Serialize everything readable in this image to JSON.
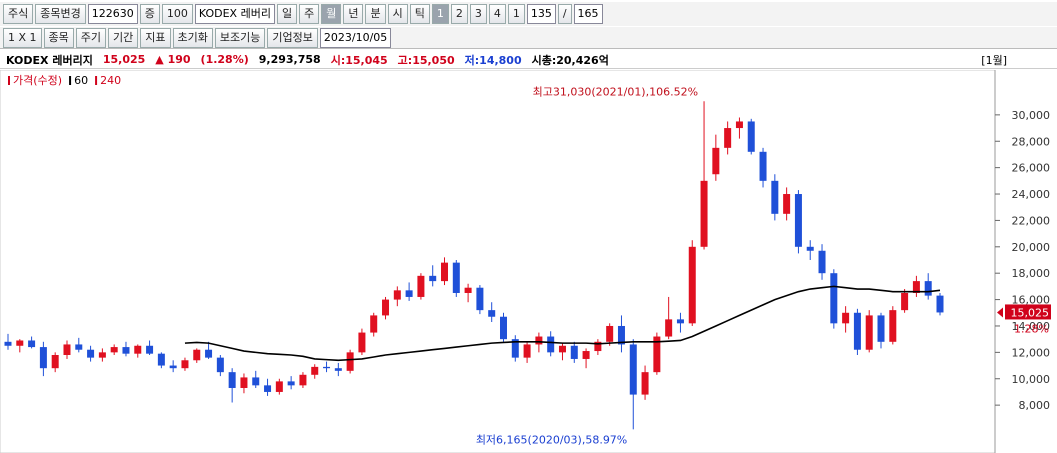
{
  "toolbar": {
    "row1": [
      "주식",
      "종목변경",
      "122630",
      "증",
      "100",
      "KODEX 레버리",
      "일",
      "주",
      "월",
      "년",
      "분",
      "시",
      "틱",
      "1",
      "2",
      "3",
      "4",
      "1",
      "135",
      "/",
      "165"
    ],
    "row2": [
      "1 X 1",
      "종목",
      "주기",
      "기간",
      "지표",
      "초기화",
      "보조기능",
      "기업정보",
      "2023/10/05"
    ]
  },
  "info": {
    "name": "KODEX 레버리지",
    "price": "15,025",
    "change": "▲ 190",
    "rate": "(1.28%)",
    "volume": "9,293,758",
    "open": "시:15,045",
    "high": "고:15,050",
    "low": "저:14,800",
    "cap": "시총:20,426억",
    "period": "[1월]"
  },
  "chart_data": {
    "type": "candlestick",
    "legend": [
      {
        "name": "가격(수정)",
        "color": "#d0021b"
      },
      {
        "name": "60",
        "color": "#000000"
      },
      {
        "name": "240",
        "color": "#d0021b"
      }
    ],
    "up_color": "#e01020",
    "down_color": "#1f50d8",
    "ylim": [
      4600,
      33400
    ],
    "yticks": [
      {
        "value": 8000,
        "label": "8,000"
      },
      {
        "value": 10000,
        "label": "10,000"
      },
      {
        "value": 12000,
        "label": "12,000"
      },
      {
        "value": 14000,
        "label": "14,000"
      },
      {
        "value": 16000,
        "label": "16,000"
      },
      {
        "value": 18000,
        "label": "18,000"
      },
      {
        "value": 20000,
        "label": "20,000"
      },
      {
        "value": 22000,
        "label": "22,000"
      },
      {
        "value": 24000,
        "label": "24,000"
      },
      {
        "value": 26000,
        "label": "26,000"
      },
      {
        "value": 28000,
        "label": "28,000"
      },
      {
        "value": 30000,
        "label": "30,000"
      }
    ],
    "ohlc": [
      [
        12800,
        13400,
        12200,
        12500
      ],
      [
        12500,
        13000,
        12000,
        12900
      ],
      [
        12900,
        13200,
        12300,
        12400
      ],
      [
        12400,
        12800,
        10200,
        10800
      ],
      [
        10800,
        12000,
        10500,
        11800
      ],
      [
        11800,
        12900,
        11500,
        12600
      ],
      [
        12600,
        13100,
        12000,
        12200
      ],
      [
        12200,
        12500,
        11300,
        11600
      ],
      [
        11600,
        12300,
        11300,
        12000
      ],
      [
        12000,
        12600,
        11800,
        12400
      ],
      [
        12400,
        12800,
        11700,
        11900
      ],
      [
        11900,
        12600,
        11600,
        12500
      ],
      [
        12500,
        12900,
        11800,
        11900
      ],
      [
        11900,
        12000,
        10800,
        11000
      ],
      [
        11000,
        11400,
        10500,
        10800
      ],
      [
        10800,
        11600,
        10600,
        11400
      ],
      [
        11400,
        12300,
        11200,
        12200
      ],
      [
        12200,
        12800,
        11500,
        11600
      ],
      [
        11600,
        11800,
        10200,
        10500
      ],
      [
        10500,
        10800,
        8200,
        9300
      ],
      [
        9300,
        10400,
        8900,
        10100
      ],
      [
        10100,
        10600,
        9300,
        9500
      ],
      [
        9500,
        10000,
        8700,
        9000
      ],
      [
        9000,
        10000,
        8800,
        9800
      ],
      [
        9800,
        10200,
        9200,
        9500
      ],
      [
        9500,
        10500,
        9300,
        10300
      ],
      [
        10300,
        11100,
        10000,
        10900
      ],
      [
        10900,
        11300,
        10500,
        10800
      ],
      [
        10800,
        11200,
        10200,
        10600
      ],
      [
        10600,
        12200,
        10400,
        12000
      ],
      [
        12000,
        13800,
        11800,
        13500
      ],
      [
        13500,
        15000,
        13200,
        14800
      ],
      [
        14800,
        16200,
        14500,
        16000
      ],
      [
        16000,
        17000,
        15500,
        16700
      ],
      [
        16700,
        17300,
        15900,
        16200
      ],
      [
        16200,
        18000,
        16000,
        17800
      ],
      [
        17800,
        18600,
        17000,
        17400
      ],
      [
        17400,
        19200,
        17100,
        18800
      ],
      [
        18800,
        19000,
        16200,
        16500
      ],
      [
        16500,
        17200,
        15800,
        16900
      ],
      [
        16900,
        17100,
        14900,
        15200
      ],
      [
        15200,
        15800,
        14300,
        14700
      ],
      [
        14700,
        15000,
        12800,
        13000
      ],
      [
        13000,
        13300,
        11300,
        11600
      ],
      [
        11600,
        12800,
        11200,
        12600
      ],
      [
        12600,
        13500,
        12000,
        13200
      ],
      [
        13200,
        13600,
        11700,
        12000
      ],
      [
        12000,
        12700,
        11400,
        12500
      ],
      [
        12500,
        12800,
        11200,
        11500
      ],
      [
        11500,
        12300,
        10800,
        12100
      ],
      [
        12100,
        13000,
        11800,
        12800
      ],
      [
        12800,
        14200,
        12500,
        14000
      ],
      [
        14000,
        14800,
        12000,
        12600
      ],
      [
        12600,
        13000,
        6165,
        8800
      ],
      [
        8800,
        11000,
        8400,
        10500
      ],
      [
        10500,
        13500,
        10300,
        13200
      ],
      [
        13200,
        16200,
        13000,
        14500
      ],
      [
        14500,
        15000,
        13500,
        14200
      ],
      [
        14200,
        20500,
        14000,
        20000
      ],
      [
        20000,
        31030,
        19800,
        25000
      ],
      [
        25500,
        28500,
        25000,
        27500
      ],
      [
        27500,
        29500,
        27000,
        29000
      ],
      [
        29000,
        29800,
        28200,
        29500
      ],
      [
        29500,
        29700,
        27000,
        27200
      ],
      [
        27200,
        27500,
        24500,
        25000
      ],
      [
        25000,
        25500,
        22000,
        22500
      ],
      [
        22500,
        24500,
        22000,
        24000
      ],
      [
        24000,
        24300,
        19500,
        20000
      ],
      [
        20000,
        20500,
        19000,
        19700
      ],
      [
        19700,
        20200,
        17500,
        18000
      ],
      [
        18000,
        18300,
        13800,
        14200
      ],
      [
        14200,
        15500,
        13500,
        15000
      ],
      [
        15000,
        15300,
        11800,
        12200
      ],
      [
        12200,
        15200,
        12000,
        14800
      ],
      [
        14800,
        15000,
        12300,
        12800
      ],
      [
        12800,
        15500,
        12600,
        15200
      ],
      [
        15200,
        16800,
        15000,
        16500
      ],
      [
        16500,
        17800,
        16200,
        17400
      ],
      [
        17400,
        18000,
        16000,
        16300
      ],
      [
        16300,
        16500,
        14800,
        15025
      ]
    ],
    "ma60": [
      null,
      null,
      null,
      null,
      null,
      null,
      null,
      null,
      null,
      null,
      null,
      null,
      null,
      null,
      null,
      12700,
      12750,
      12700,
      12500,
      12300,
      12100,
      12000,
      11900,
      11850,
      11800,
      11700,
      11500,
      11450,
      11400,
      11450,
      11500,
      11650,
      11800,
      11900,
      12000,
      12100,
      12200,
      12300,
      12400,
      12500,
      12600,
      12700,
      12750,
      12800,
      12800,
      12800,
      12750,
      12700,
      12700,
      12700,
      12650,
      12700,
      12750,
      12800,
      12800,
      12800,
      12850,
      12900,
      13200,
      13600,
      14000,
      14400,
      14800,
      15200,
      15600,
      16000,
      16300,
      16600,
      16800,
      16900,
      17000,
      16900,
      16800,
      16800,
      16700,
      16600,
      16600,
      16600,
      16600,
      16700
    ],
    "annotations": {
      "high": "최고31,030(2021/01),106.52%",
      "low": "최저6,165(2020/03),58.97%"
    },
    "last_price": "15,025",
    "last_rate": "1.28%"
  }
}
